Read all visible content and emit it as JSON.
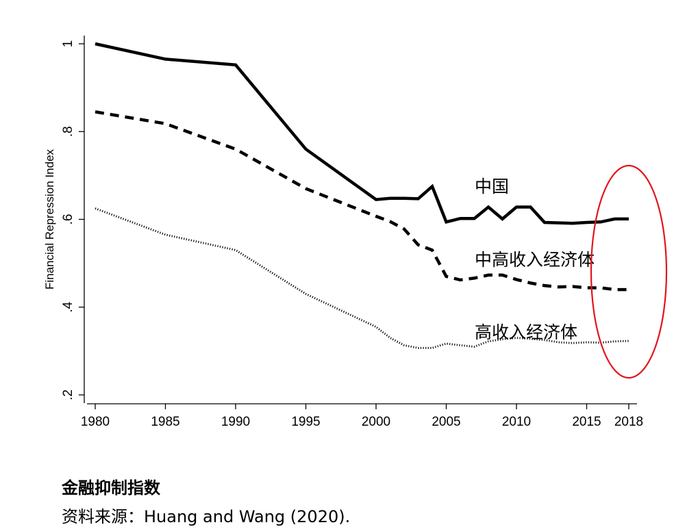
{
  "chart_data": {
    "type": "line",
    "ylabel": "Financial Repression Index",
    "xlabel": "",
    "xlim": [
      1980,
      2018
    ],
    "ylim": [
      0.2,
      1.0
    ],
    "x_ticks": [
      "1980",
      "1985",
      "1990",
      "1995",
      "2000",
      "2005",
      "2010",
      "2015",
      "2018"
    ],
    "y_ticks": [
      {
        "value": 0.2,
        "label": ".2"
      },
      {
        "value": 0.4,
        "label": ".4"
      },
      {
        "value": 0.6,
        "label": ".6"
      },
      {
        "value": 0.8,
        "label": ".8"
      },
      {
        "value": 1.0,
        "label": "1"
      }
    ],
    "grid": false,
    "series": [
      {
        "name": "中国",
        "style": "solid",
        "color": "#000000",
        "x": [
          1980,
          1985,
          1990,
          1995,
          2000,
          2001,
          2002,
          2003,
          2004,
          2005,
          2006,
          2007,
          2008,
          2009,
          2010,
          2011,
          2012,
          2013,
          2014,
          2015,
          2016,
          2017,
          2018
        ],
        "y": [
          1.0,
          0.965,
          0.952,
          0.76,
          0.645,
          0.648,
          0.648,
          0.647,
          0.675,
          0.594,
          0.602,
          0.602,
          0.628,
          0.601,
          0.628,
          0.628,
          0.593,
          0.592,
          0.591,
          0.593,
          0.594,
          0.601,
          0.601
        ]
      },
      {
        "name": "中高收入经济体",
        "style": "dashed",
        "color": "#000000",
        "x": [
          1980,
          1985,
          1990,
          1995,
          2000,
          2001,
          2002,
          2003,
          2004,
          2005,
          2006,
          2007,
          2008,
          2009,
          2010,
          2011,
          2012,
          2013,
          2014,
          2015,
          2016,
          2017,
          2018
        ],
        "y": [
          0.845,
          0.818,
          0.76,
          0.67,
          0.607,
          0.595,
          0.578,
          0.542,
          0.53,
          0.47,
          0.462,
          0.466,
          0.473,
          0.473,
          0.463,
          0.455,
          0.449,
          0.446,
          0.447,
          0.444,
          0.444,
          0.44,
          0.44
        ]
      },
      {
        "name": "高收入经济体",
        "style": "dotted",
        "color": "#000000",
        "x": [
          1980,
          1985,
          1990,
          1995,
          2000,
          2001,
          2002,
          2003,
          2004,
          2005,
          2006,
          2007,
          2008,
          2009,
          2010,
          2011,
          2012,
          2013,
          2014,
          2015,
          2016,
          2017,
          2018
        ],
        "y": [
          0.625,
          0.565,
          0.53,
          0.43,
          0.355,
          0.33,
          0.313,
          0.307,
          0.307,
          0.317,
          0.313,
          0.31,
          0.322,
          0.327,
          0.33,
          0.328,
          0.325,
          0.32,
          0.318,
          0.32,
          0.319,
          0.322,
          0.323
        ]
      }
    ],
    "annotations": [
      {
        "type": "ellipse",
        "color": "#e3141b",
        "around": {
          "x": 2018,
          "y": 0.44
        }
      }
    ]
  },
  "caption": {
    "title": "金融抑制指数",
    "source": "资料来源：Huang and Wang (2020)."
  }
}
